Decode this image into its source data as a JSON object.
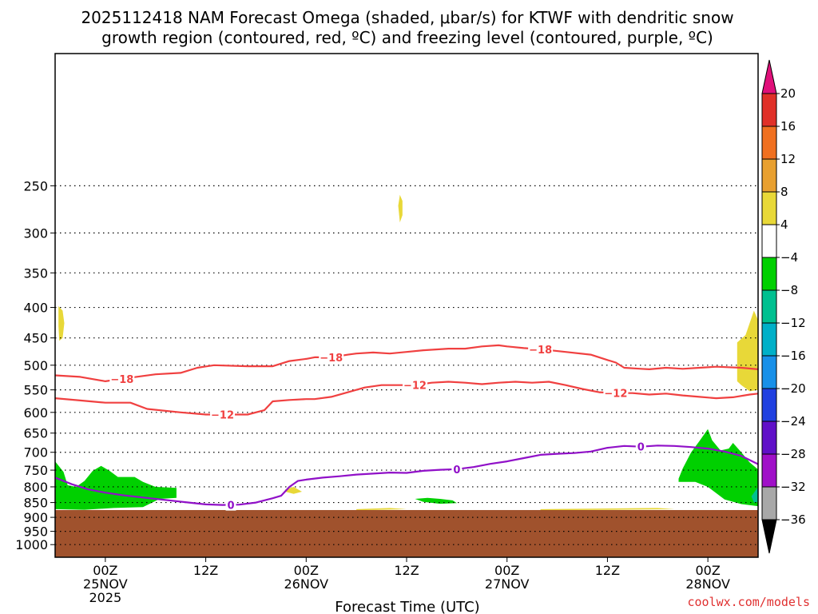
{
  "title": {
    "line1": "2025112418 NAM Forecast Omega (shaded, μbar/s) for KTWF with dendritic snow",
    "line2": "growth region (contoured, red, ºC) and freezing level (contoured, purple, ºC)"
  },
  "credit": "coolwx.com/models",
  "chart_data": {
    "type": "heatmap",
    "title": "2025112418 NAM Forecast Omega (shaded, μbar/s) for KTWF with dendritic snow growth region (contoured, red, ºC) and freezing level (contoured, purple, ºC)",
    "xlabel": "Forecast Time (UTC)",
    "ylabel": "",
    "x_units": "forecast hour from 2025112418",
    "xlim": [
      0,
      84
    ],
    "ylim": [
      1050,
      150
    ],
    "y_scale": "log",
    "grid": true,
    "y_ticks": [
      250,
      300,
      350,
      400,
      450,
      500,
      550,
      600,
      650,
      700,
      750,
      800,
      850,
      900,
      950,
      1000
    ],
    "x_ticks": [
      {
        "x": 6,
        "lines": [
          "00Z",
          "25NOV",
          "2025"
        ]
      },
      {
        "x": 18,
        "lines": [
          "12Z"
        ]
      },
      {
        "x": 30,
        "lines": [
          "00Z",
          "26NOV"
        ]
      },
      {
        "x": 42,
        "lines": [
          "12Z"
        ]
      },
      {
        "x": 54,
        "lines": [
          "00Z",
          "27NOV"
        ]
      },
      {
        "x": 66,
        "lines": [
          "12Z"
        ]
      },
      {
        "x": 78,
        "lines": [
          "00Z",
          "28NOV"
        ]
      }
    ],
    "colorbar": {
      "labels": [
        "20",
        "16",
        "12",
        "8",
        "4",
        "−4",
        "−8",
        "−12",
        "−16",
        "−20",
        "−24",
        "−28",
        "−32",
        "−36"
      ],
      "colors": [
        "#e03028",
        "#f07020",
        "#e8a030",
        "#e8d838",
        "#ffffff",
        "#00d000",
        "#00c090",
        "#00b0c8",
        "#1890e8",
        "#2040e0",
        "#6010c8",
        "#a010c8",
        "#a8a8a8"
      ],
      "top_arrow": "#e0107a",
      "bottom_arrow": "#000000"
    },
    "ground": {
      "color": "#a0522d",
      "top_pressure": 875
    },
    "contours": [
      {
        "name": "dgz_minus18",
        "color": "#f04040",
        "label": "−18",
        "label_at": [
          [
            8,
            527
          ],
          [
            33,
            485
          ],
          [
            58,
            470
          ]
        ],
        "points": [
          [
            0,
            520
          ],
          [
            3,
            523
          ],
          [
            6,
            532
          ],
          [
            8,
            527
          ],
          [
            12,
            518
          ],
          [
            15,
            515
          ],
          [
            17,
            505
          ],
          [
            19,
            500
          ],
          [
            23,
            502
          ],
          [
            26,
            502
          ],
          [
            28,
            492
          ],
          [
            30,
            488
          ],
          [
            31,
            485
          ],
          [
            33,
            485
          ],
          [
            35,
            480
          ],
          [
            36,
            478
          ],
          [
            38,
            476
          ],
          [
            40,
            478
          ],
          [
            42,
            475
          ],
          [
            44,
            472
          ],
          [
            47,
            469
          ],
          [
            49,
            469
          ],
          [
            51,
            465
          ],
          [
            53,
            463
          ],
          [
            54,
            465
          ],
          [
            56,
            468
          ],
          [
            58,
            470
          ],
          [
            61,
            475
          ],
          [
            64,
            480
          ],
          [
            66,
            490
          ],
          [
            67,
            495
          ],
          [
            68,
            505
          ],
          [
            70,
            507
          ],
          [
            71,
            508
          ],
          [
            73,
            505
          ],
          [
            75,
            507
          ],
          [
            77,
            505
          ],
          [
            79,
            503
          ],
          [
            82,
            505
          ],
          [
            84,
            508
          ]
        ]
      },
      {
        "name": "dgz_minus12",
        "color": "#f04040",
        "label": "−12",
        "label_at": [
          [
            20,
            605
          ],
          [
            43,
            540
          ],
          [
            67,
            557
          ]
        ],
        "points": [
          [
            0,
            568
          ],
          [
            3,
            573
          ],
          [
            6,
            578
          ],
          [
            9,
            578
          ],
          [
            11,
            592
          ],
          [
            15,
            600
          ],
          [
            18,
            605
          ],
          [
            20,
            605
          ],
          [
            23,
            605
          ],
          [
            25,
            595
          ],
          [
            26,
            575
          ],
          [
            28,
            572
          ],
          [
            30,
            570
          ],
          [
            31,
            570
          ],
          [
            33,
            565
          ],
          [
            35,
            555
          ],
          [
            37,
            545
          ],
          [
            39,
            540
          ],
          [
            41,
            540
          ],
          [
            43,
            540
          ],
          [
            45,
            535
          ],
          [
            47,
            533
          ],
          [
            49,
            535
          ],
          [
            51,
            538
          ],
          [
            53,
            535
          ],
          [
            55,
            533
          ],
          [
            57,
            535
          ],
          [
            59,
            533
          ],
          [
            61,
            540
          ],
          [
            63,
            548
          ],
          [
            65,
            555
          ],
          [
            67,
            557
          ],
          [
            69,
            557
          ],
          [
            71,
            560
          ],
          [
            73,
            558
          ],
          [
            75,
            562
          ],
          [
            77,
            565
          ],
          [
            79,
            568
          ],
          [
            81,
            566
          ],
          [
            83,
            560
          ],
          [
            84,
            558
          ]
        ]
      },
      {
        "name": "freezing_level_0",
        "color": "#9010c8",
        "label": "0",
        "label_at": [
          [
            21,
            858
          ],
          [
            48,
            747
          ],
          [
            70,
            685
          ]
        ],
        "points": [
          [
            0,
            772
          ],
          [
            2,
            792
          ],
          [
            4,
            808
          ],
          [
            6,
            818
          ],
          [
            8,
            826
          ],
          [
            10,
            832
          ],
          [
            12,
            838
          ],
          [
            14,
            844
          ],
          [
            16,
            850
          ],
          [
            18,
            856
          ],
          [
            20,
            858
          ],
          [
            22,
            857
          ],
          [
            24,
            850
          ],
          [
            26,
            836
          ],
          [
            27,
            828
          ],
          [
            28,
            800
          ],
          [
            29,
            782
          ],
          [
            30,
            778
          ],
          [
            32,
            772
          ],
          [
            34,
            768
          ],
          [
            36,
            763
          ],
          [
            38,
            760
          ],
          [
            40,
            757
          ],
          [
            42,
            758
          ],
          [
            44,
            752
          ],
          [
            46,
            749
          ],
          [
            48,
            747
          ],
          [
            50,
            741
          ],
          [
            52,
            732
          ],
          [
            54,
            725
          ],
          [
            56,
            716
          ],
          [
            58,
            707
          ],
          [
            60,
            704
          ],
          [
            62,
            702
          ],
          [
            64,
            698
          ],
          [
            66,
            688
          ],
          [
            68,
            683
          ],
          [
            70,
            685
          ],
          [
            72,
            682
          ],
          [
            74,
            683
          ],
          [
            76,
            686
          ],
          [
            78,
            690
          ],
          [
            80,
            698
          ],
          [
            82,
            710
          ],
          [
            84,
            733
          ]
        ]
      }
    ],
    "shaded_regions": [
      {
        "name": "omega_green_low_left",
        "color": "#00d000",
        "omega_range": [
          -8,
          -4
        ],
        "points": [
          [
            0,
            725
          ],
          [
            1,
            755
          ],
          [
            1.5,
            795
          ],
          [
            2.5,
            800
          ],
          [
            3.5,
            782
          ],
          [
            4.5,
            752
          ],
          [
            5.5,
            738
          ],
          [
            6.5,
            752
          ],
          [
            7.5,
            770
          ],
          [
            9.5,
            770
          ],
          [
            10.5,
            785
          ],
          [
            12,
            800
          ],
          [
            14.5,
            803
          ],
          [
            14.5,
            835
          ],
          [
            12.5,
            838
          ],
          [
            10.5,
            865
          ],
          [
            7,
            868
          ],
          [
            3.5,
            874
          ],
          [
            0,
            872
          ]
        ]
      },
      {
        "name": "omega_green_right",
        "color": "#00d000",
        "omega_range": [
          -8,
          -4
        ],
        "points": [
          [
            74.5,
            775
          ],
          [
            75,
            745
          ],
          [
            76,
            700
          ],
          [
            77,
            670
          ],
          [
            78,
            640
          ],
          [
            78.5,
            668
          ],
          [
            79.5,
            695
          ],
          [
            80.5,
            690
          ],
          [
            81,
            675
          ],
          [
            82,
            700
          ],
          [
            83,
            728
          ],
          [
            84,
            748
          ],
          [
            84,
            862
          ],
          [
            82,
            855
          ],
          [
            80,
            840
          ],
          [
            78,
            800
          ],
          [
            76.5,
            785
          ],
          [
            74.5,
            785
          ]
        ]
      },
      {
        "name": "omega_teal_right",
        "color": "#00c090",
        "omega_range": [
          -12,
          -8
        ],
        "points": [
          [
            83.2,
            830
          ],
          [
            84,
            800
          ],
          [
            84,
            848
          ],
          [
            83.5,
            850
          ]
        ]
      },
      {
        "name": "omega_green_mid",
        "color": "#00d000",
        "omega_range": [
          -8,
          -4
        ],
        "points": [
          [
            43,
            838
          ],
          [
            44.5,
            835
          ],
          [
            46,
            838
          ],
          [
            47.5,
            843
          ],
          [
            48,
            852
          ],
          [
            46,
            854
          ],
          [
            44,
            848
          ]
        ]
      },
      {
        "name": "omega_yellow_upper_left",
        "color": "#e8d838",
        "omega_range": [
          4,
          8
        ],
        "points": [
          [
            0.4,
            398
          ],
          [
            0.9,
            405
          ],
          [
            1.1,
            425
          ],
          [
            0.9,
            450
          ],
          [
            0.5,
            455
          ],
          [
            0.4,
            430
          ]
        ]
      },
      {
        "name": "omega_yellow_top",
        "color": "#e8d838",
        "omega_range": [
          4,
          8
        ],
        "points": [
          [
            41.2,
            259
          ],
          [
            41.5,
            265
          ],
          [
            41.5,
            280
          ],
          [
            41.2,
            288
          ],
          [
            41.0,
            270
          ]
        ]
      },
      {
        "name": "omega_yellow_right",
        "color": "#e8d838",
        "omega_range": [
          4,
          8
        ],
        "points": [
          [
            81.5,
            458
          ],
          [
            82.5,
            445
          ],
          [
            83.5,
            405
          ],
          [
            84,
            420
          ],
          [
            84,
            550
          ],
          [
            83,
            553
          ],
          [
            82,
            540
          ],
          [
            81.5,
            532
          ]
        ]
      },
      {
        "name": "omega_yellow_mid",
        "color": "#e8d838",
        "omega_range": [
          4,
          8
        ],
        "points": [
          [
            27.5,
            808
          ],
          [
            28.5,
            800
          ],
          [
            29.5,
            815
          ],
          [
            28.5,
            822
          ],
          [
            27.5,
            815
          ]
        ]
      },
      {
        "name": "omega_yellow_ground_a",
        "color": "#e8d838",
        "omega_range": [
          4,
          8
        ],
        "points": [
          [
            36,
            872
          ],
          [
            40,
            868
          ],
          [
            42,
            872
          ],
          [
            36,
            876
          ]
        ]
      },
      {
        "name": "omega_yellow_ground_b",
        "color": "#e8d838",
        "omega_range": [
          4,
          8
        ],
        "points": [
          [
            58,
            872
          ],
          [
            72,
            868
          ],
          [
            74,
            872
          ],
          [
            58,
            876
          ]
        ]
      }
    ]
  }
}
